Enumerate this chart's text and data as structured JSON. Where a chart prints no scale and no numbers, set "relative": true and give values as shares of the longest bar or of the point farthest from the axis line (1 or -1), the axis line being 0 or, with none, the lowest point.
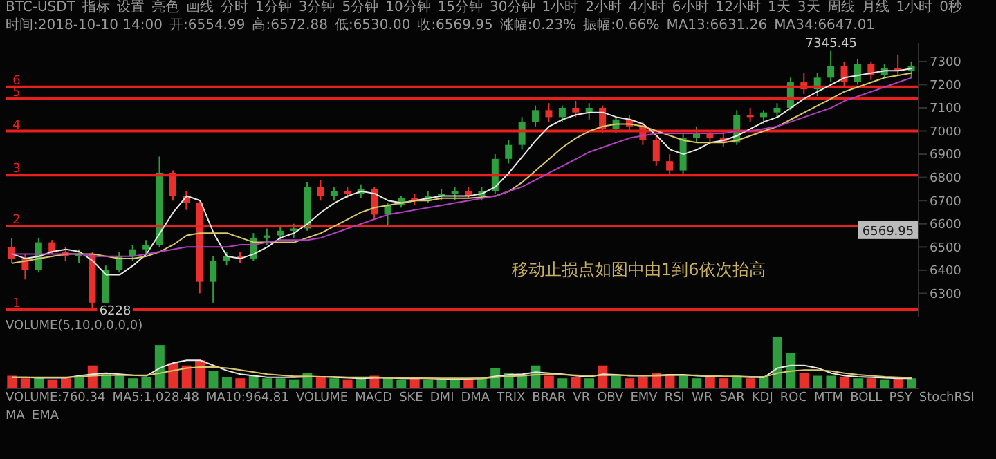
{
  "chart_data": [
    {
      "type": "candlestick",
      "subtitle": "移动止损点如图中由1到6依次抬高",
      "annotations": [
        "BTC-USDT",
        "指标",
        "设置",
        "亮色",
        "画线",
        "分时",
        "1分钟",
        "3分钟",
        "5分钟",
        "10分钟",
        "15分钟",
        "30分钟",
        "1小时",
        "2小时",
        "4小时",
        "6小时",
        "12小时",
        "1天",
        "3天",
        "周线",
        "月线",
        "1小时",
        "0秒",
        "时间:2018-10-10 14:00",
        "开:6554.99",
        "高:6572.88",
        "低:6530.00",
        "收:6569.95",
        "涨幅:0.23%",
        "振幅:0.66%",
        "MA13:6631.26",
        "MA34:6647.01",
        {
          "text": "7345.45",
          "y": 7345.45
        },
        {
          "text": "6228",
          "y": 6228
        },
        {
          "text": "6569.95",
          "y": 6569.95
        },
        {
          "text": "1",
          "y": 6230
        },
        {
          "text": "2",
          "y": 6590
        },
        {
          "text": "3",
          "y": 6810
        },
        {
          "text": "4",
          "y": 7000
        },
        {
          "text": "5",
          "y": 7140
        },
        {
          "text": "6",
          "y": 7190
        }
      ],
      "categories": [
        null,
        null,
        null,
        null,
        null,
        null,
        null,
        null,
        null,
        null,
        null,
        null,
        null,
        null,
        null,
        null,
        null,
        null,
        null,
        null,
        null,
        null,
        null,
        null,
        null,
        null,
        null,
        null,
        null,
        null,
        null,
        null,
        null,
        null,
        null,
        null,
        null,
        null,
        null,
        null,
        null,
        null,
        null,
        null,
        null,
        null,
        null,
        null,
        null,
        null,
        null,
        null,
        null,
        null,
        null,
        null,
        null,
        null,
        null,
        null,
        null,
        null,
        null,
        null,
        null,
        null,
        null,
        null
      ],
      "ohlc": [
        [
          6500,
          6540,
          6430,
          6450
        ],
        [
          6450,
          6470,
          6360,
          6400
        ],
        [
          6400,
          6540,
          6390,
          6520
        ],
        [
          6520,
          6530,
          6470,
          6480
        ],
        [
          6480,
          6500,
          6440,
          6460
        ],
        [
          6460,
          6490,
          6430,
          6470
        ],
        [
          6470,
          6480,
          6228,
          6260
        ],
        [
          6260,
          6420,
          6250,
          6400
        ],
        [
          6400,
          6480,
          6390,
          6460
        ],
        [
          6460,
          6510,
          6440,
          6490
        ],
        [
          6490,
          6530,
          6470,
          6510
        ],
        [
          6510,
          6890,
          6500,
          6820
        ],
        [
          6820,
          6830,
          6700,
          6720
        ],
        [
          6720,
          6740,
          6660,
          6690
        ],
        [
          6690,
          6700,
          6300,
          6350
        ],
        [
          6350,
          6460,
          6260,
          6440
        ],
        [
          6440,
          6480,
          6420,
          6460
        ],
        [
          6460,
          6480,
          6430,
          6450
        ],
        [
          6450,
          6560,
          6440,
          6540
        ],
        [
          6540,
          6580,
          6510,
          6550
        ],
        [
          6550,
          6590,
          6530,
          6570
        ],
        [
          6570,
          6600,
          6540,
          6580
        ],
        [
          6580,
          6780,
          6570,
          6760
        ],
        [
          6760,
          6790,
          6700,
          6720
        ],
        [
          6720,
          6760,
          6700,
          6740
        ],
        [
          6740,
          6760,
          6710,
          6730
        ],
        [
          6730,
          6770,
          6710,
          6750
        ],
        [
          6750,
          6760,
          6620,
          6640
        ],
        [
          6640,
          6690,
          6590,
          6680
        ],
        [
          6680,
          6720,
          6670,
          6710
        ],
        [
          6710,
          6730,
          6680,
          6700
        ],
        [
          6700,
          6740,
          6690,
          6720
        ],
        [
          6720,
          6750,
          6700,
          6730
        ],
        [
          6730,
          6760,
          6700,
          6740
        ],
        [
          6740,
          6760,
          6710,
          6720
        ],
        [
          6720,
          6760,
          6700,
          6740
        ],
        [
          6740,
          6900,
          6730,
          6880
        ],
        [
          6880,
          6960,
          6860,
          6940
        ],
        [
          6940,
          7060,
          6920,
          7040
        ],
        [
          7040,
          7110,
          7020,
          7090
        ],
        [
          7090,
          7120,
          7040,
          7060
        ],
        [
          7060,
          7110,
          7040,
          7100
        ],
        [
          7100,
          7130,
          7060,
          7080
        ],
        [
          7080,
          7120,
          7050,
          7100
        ],
        [
          7100,
          7110,
          6990,
          7010
        ],
        [
          7010,
          7060,
          6990,
          7050
        ],
        [
          7050,
          7070,
          7000,
          7020
        ],
        [
          7020,
          7040,
          6940,
          6960
        ],
        [
          6960,
          6980,
          6850,
          6870
        ],
        [
          6870,
          6900,
          6810,
          6830
        ],
        [
          6830,
          6990,
          6810,
          6970
        ],
        [
          6970,
          7020,
          6950,
          6990
        ],
        [
          6990,
          7000,
          6950,
          6970
        ],
        [
          6970,
          7000,
          6930,
          6950
        ],
        [
          6950,
          7090,
          6940,
          7070
        ],
        [
          7070,
          7100,
          7040,
          7060
        ],
        [
          7060,
          7090,
          7030,
          7080
        ],
        [
          7080,
          7120,
          7060,
          7100
        ],
        [
          7100,
          7230,
          7090,
          7210
        ],
        [
          7210,
          7250,
          7160,
          7180
        ],
        [
          7180,
          7250,
          7150,
          7230
        ],
        [
          7230,
          7345.45,
          7210,
          7280
        ],
        [
          7280,
          7300,
          7190,
          7210
        ],
        [
          7210,
          7310,
          7200,
          7290
        ],
        [
          7290,
          7300,
          7220,
          7240
        ],
        [
          7240,
          7290,
          7230,
          7270
        ],
        [
          7270,
          7330,
          7240,
          7260
        ],
        [
          7260,
          7300,
          7230,
          7280
        ]
      ],
      "colors": [
        "#e8312d",
        "#e8312d",
        "#2e9e3e",
        "#e8312d",
        "#e8312d",
        "#2e9e3e",
        "#e8312d",
        "#2e9e3e",
        "#2e9e3e",
        "#2e9e3e",
        "#2e9e3e",
        "#2e9e3e",
        "#e8312d",
        "#e8312d",
        "#e8312d",
        "#2e9e3e",
        "#2e9e3e",
        "#e8312d",
        "#2e9e3e",
        "#2e9e3e",
        "#2e9e3e",
        "#2e9e3e",
        "#2e9e3e",
        "#e8312d",
        "#2e9e3e",
        "#e8312d",
        "#2e9e3e",
        "#e8312d",
        "#2e9e3e",
        "#2e9e3e",
        "#e8312d",
        "#2e9e3e",
        "#2e9e3e",
        "#2e9e3e",
        "#e8312d",
        "#2e9e3e",
        "#2e9e3e",
        "#2e9e3e",
        "#2e9e3e",
        "#2e9e3e",
        "#e8312d",
        "#2e9e3e",
        "#e8312d",
        "#2e9e3e",
        "#e8312d",
        "#2e9e3e",
        "#e8312d",
        "#e8312d",
        "#e8312d",
        "#e8312d",
        "#2e9e3e",
        "#2e9e3e",
        "#e8312d",
        "#e8312d",
        "#2e9e3e",
        "#e8312d",
        "#2e9e3e",
        "#2e9e3e",
        "#2e9e3e",
        "#e8312d",
        "#2e9e3e",
        "#2e9e3e",
        "#e8312d",
        "#2e9e3e",
        "#e8312d",
        "#2e9e3e",
        "#e8312d",
        "#2e9e3e"
      ],
      "series": [
        {
          "type": "line",
          "color": "#e8e8e8",
          "values": [
            6470,
            6450,
            6460,
            6480,
            6490,
            6480,
            6440,
            6380,
            6380,
            6420,
            6470,
            6560,
            6650,
            6720,
            6700,
            6560,
            6460,
            6450,
            6470,
            6500,
            6540,
            6560,
            6600,
            6650,
            6690,
            6720,
            6740,
            6730,
            6700,
            6690,
            6700,
            6710,
            6720,
            6720,
            6720,
            6730,
            6760,
            6820,
            6890,
            6960,
            7020,
            7050,
            7070,
            7080,
            7080,
            7060,
            7050,
            7030,
            6980,
            6920,
            6900,
            6920,
            6950,
            6960,
            6980,
            7010,
            7040,
            7060,
            7100,
            7140,
            7170,
            7200,
            7230,
            7240,
            7250,
            7260,
            7260,
            7270
          ]
        },
        {
          "type": "line",
          "color": "#d8c86a",
          "values": [
            6430,
            6440,
            6450,
            6460,
            6470,
            6470,
            6470,
            6460,
            6450,
            6450,
            6460,
            6480,
            6510,
            6550,
            6560,
            6560,
            6560,
            6540,
            6520,
            6520,
            6520,
            6520,
            6540,
            6560,
            6590,
            6620,
            6650,
            6670,
            6680,
            6690,
            6700,
            6700,
            6710,
            6710,
            6710,
            6715,
            6720,
            6740,
            6780,
            6830,
            6880,
            6930,
            6970,
            7000,
            7020,
            7030,
            7030,
            7020,
            7000,
            6980,
            6960,
            6950,
            6950,
            6950,
            6960,
            6980,
            7000,
            7020,
            7050,
            7080,
            7110,
            7140,
            7170,
            7190,
            7210,
            7230,
            7240,
            7250
          ]
        },
        {
          "type": "line",
          "color": "#b040c0",
          "values": [
            6470,
            6470,
            6470,
            6470,
            6470,
            6470,
            6460,
            6460,
            6460,
            6460,
            6470,
            6480,
            6490,
            6500,
            6500,
            6500,
            6500,
            6510,
            6510,
            6520,
            6530,
            6530,
            6530,
            6540,
            6560,
            6580,
            6600,
            6620,
            6640,
            6650,
            6660,
            6670,
            6680,
            6690,
            6700,
            6710,
            6720,
            6740,
            6760,
            6790,
            6820,
            6850,
            6880,
            6910,
            6930,
            6950,
            6970,
            6980,
            6990,
            6990,
            6990,
            6990,
            6990,
            6990,
            7000,
            7000,
            7010,
            7020,
            7040,
            7060,
            7080,
            7100,
            7130,
            7150,
            7170,
            7190,
            7210,
            7230
          ]
        }
      ],
      "ylim": [
        6200,
        7380
      ],
      "yticks": [
        6300,
        6400,
        6500,
        6600,
        6700,
        6800,
        6900,
        7000,
        7100,
        7200,
        7300
      ],
      "ref_lines": [
        {
          "axis": "y",
          "value": 6230,
          "color": "#e8201e"
        },
        {
          "axis": "y",
          "value": 6590,
          "color": "#e8201e"
        },
        {
          "axis": "y",
          "value": 6810,
          "color": "#e8201e"
        },
        {
          "axis": "y",
          "value": 7000,
          "color": "#e8201e"
        },
        {
          "axis": "y",
          "value": 7140,
          "color": "#e8201e"
        },
        {
          "axis": "y",
          "value": 7190,
          "color": "#e8201e"
        }
      ],
      "tick_labels": "y"
    },
    {
      "type": "bar",
      "relative": true,
      "title": "VOLUME(5,10,0,0,0,0)",
      "annotations": [
        "VOLUME:760.34",
        "MA5:1,028.48",
        "MA10:964.81",
        "VOLUME",
        "MACD",
        "SKE",
        "DMI",
        "DMA",
        "TRIX",
        "BRAR",
        "VR",
        "OBV",
        "EMV",
        "RSI",
        "WR",
        "SAR",
        "KDJ",
        "ROC",
        "MTM",
        "BOLL",
        "PSY",
        "StochRSI",
        "MA",
        "EMA"
      ],
      "categories": [
        null,
        null,
        null,
        null,
        null,
        null,
        null,
        null,
        null,
        null,
        null,
        null,
        null,
        null,
        null,
        null,
        null,
        null,
        null,
        null,
        null,
        null,
        null,
        null,
        null,
        null,
        null,
        null,
        null,
        null,
        null,
        null,
        null,
        null,
        null,
        null,
        null,
        null,
        null,
        null,
        null,
        null,
        null,
        null,
        null,
        null,
        null,
        null,
        null,
        null,
        null,
        null,
        null,
        null,
        null,
        null,
        null,
        null,
        null,
        null,
        null,
        null,
        null,
        null,
        null,
        null,
        null,
        null
      ],
      "series": [
        {
          "type": "bar",
          "values": [
            0.25,
            0.2,
            0.22,
            0.18,
            0.2,
            0.22,
            0.45,
            0.3,
            0.25,
            0.2,
            0.22,
            0.85,
            0.5,
            0.45,
            0.55,
            0.35,
            0.22,
            0.2,
            0.25,
            0.2,
            0.2,
            0.18,
            0.3,
            0.22,
            0.2,
            0.18,
            0.2,
            0.25,
            0.22,
            0.18,
            0.2,
            0.18,
            0.2,
            0.18,
            0.2,
            0.2,
            0.4,
            0.3,
            0.25,
            0.45,
            0.25,
            0.2,
            0.22,
            0.2,
            0.45,
            0.25,
            0.2,
            0.22,
            0.3,
            0.28,
            0.25,
            0.2,
            0.22,
            0.2,
            0.25,
            0.2,
            0.22,
            1,
            0.7,
            0.3,
            0.25,
            0.25,
            0.22,
            0.2,
            0.2,
            0.18,
            0.2,
            0.2
          ],
          "colors": [
            "#e8312d",
            "#e8312d",
            "#2e9e3e",
            "#e8312d",
            "#e8312d",
            "#2e9e3e",
            "#e8312d",
            "#2e9e3e",
            "#2e9e3e",
            "#2e9e3e",
            "#2e9e3e",
            "#2e9e3e",
            "#e8312d",
            "#e8312d",
            "#e8312d",
            "#2e9e3e",
            "#2e9e3e",
            "#e8312d",
            "#2e9e3e",
            "#2e9e3e",
            "#2e9e3e",
            "#2e9e3e",
            "#2e9e3e",
            "#e8312d",
            "#2e9e3e",
            "#e8312d",
            "#2e9e3e",
            "#e8312d",
            "#2e9e3e",
            "#2e9e3e",
            "#e8312d",
            "#2e9e3e",
            "#2e9e3e",
            "#2e9e3e",
            "#e8312d",
            "#2e9e3e",
            "#2e9e3e",
            "#2e9e3e",
            "#2e9e3e",
            "#2e9e3e",
            "#e8312d",
            "#2e9e3e",
            "#e8312d",
            "#2e9e3e",
            "#e8312d",
            "#2e9e3e",
            "#e8312d",
            "#e8312d",
            "#e8312d",
            "#e8312d",
            "#2e9e3e",
            "#2e9e3e",
            "#e8312d",
            "#e8312d",
            "#2e9e3e",
            "#e8312d",
            "#2e9e3e",
            "#2e9e3e",
            "#2e9e3e",
            "#e8312d",
            "#2e9e3e",
            "#2e9e3e",
            "#e8312d",
            "#2e9e3e",
            "#e8312d",
            "#2e9e3e",
            "#e8312d",
            "#2e9e3e"
          ]
        },
        {
          "type": "line",
          "color": "#e8e8e8",
          "values": [
            0.22,
            0.22,
            0.21,
            0.21,
            0.21,
            0.25,
            0.28,
            0.3,
            0.28,
            0.26,
            0.25,
            0.4,
            0.5,
            0.55,
            0.55,
            0.45,
            0.35,
            0.28,
            0.25,
            0.22,
            0.22,
            0.22,
            0.23,
            0.23,
            0.22,
            0.21,
            0.2,
            0.21,
            0.21,
            0.2,
            0.2,
            0.2,
            0.19,
            0.19,
            0.19,
            0.2,
            0.24,
            0.27,
            0.28,
            0.32,
            0.3,
            0.28,
            0.25,
            0.23,
            0.28,
            0.27,
            0.25,
            0.25,
            0.26,
            0.27,
            0.27,
            0.25,
            0.24,
            0.23,
            0.23,
            0.22,
            0.22,
            0.4,
            0.45,
            0.45,
            0.4,
            0.3,
            0.25,
            0.23,
            0.22,
            0.21,
            0.2,
            0.2
          ]
        },
        {
          "type": "line",
          "color": "#d8c86a",
          "values": [
            0.22,
            0.22,
            0.22,
            0.22,
            0.22,
            0.23,
            0.25,
            0.26,
            0.26,
            0.26,
            0.26,
            0.3,
            0.35,
            0.4,
            0.42,
            0.42,
            0.4,
            0.36,
            0.32,
            0.28,
            0.26,
            0.24,
            0.24,
            0.23,
            0.23,
            0.22,
            0.22,
            0.22,
            0.21,
            0.21,
            0.21,
            0.2,
            0.2,
            0.2,
            0.2,
            0.2,
            0.22,
            0.24,
            0.25,
            0.27,
            0.28,
            0.27,
            0.26,
            0.25,
            0.26,
            0.26,
            0.26,
            0.25,
            0.25,
            0.26,
            0.26,
            0.26,
            0.25,
            0.24,
            0.24,
            0.23,
            0.23,
            0.3,
            0.34,
            0.36,
            0.36,
            0.34,
            0.3,
            0.27,
            0.25,
            0.23,
            0.22,
            0.21
          ]
        }
      ]
    }
  ]
}
